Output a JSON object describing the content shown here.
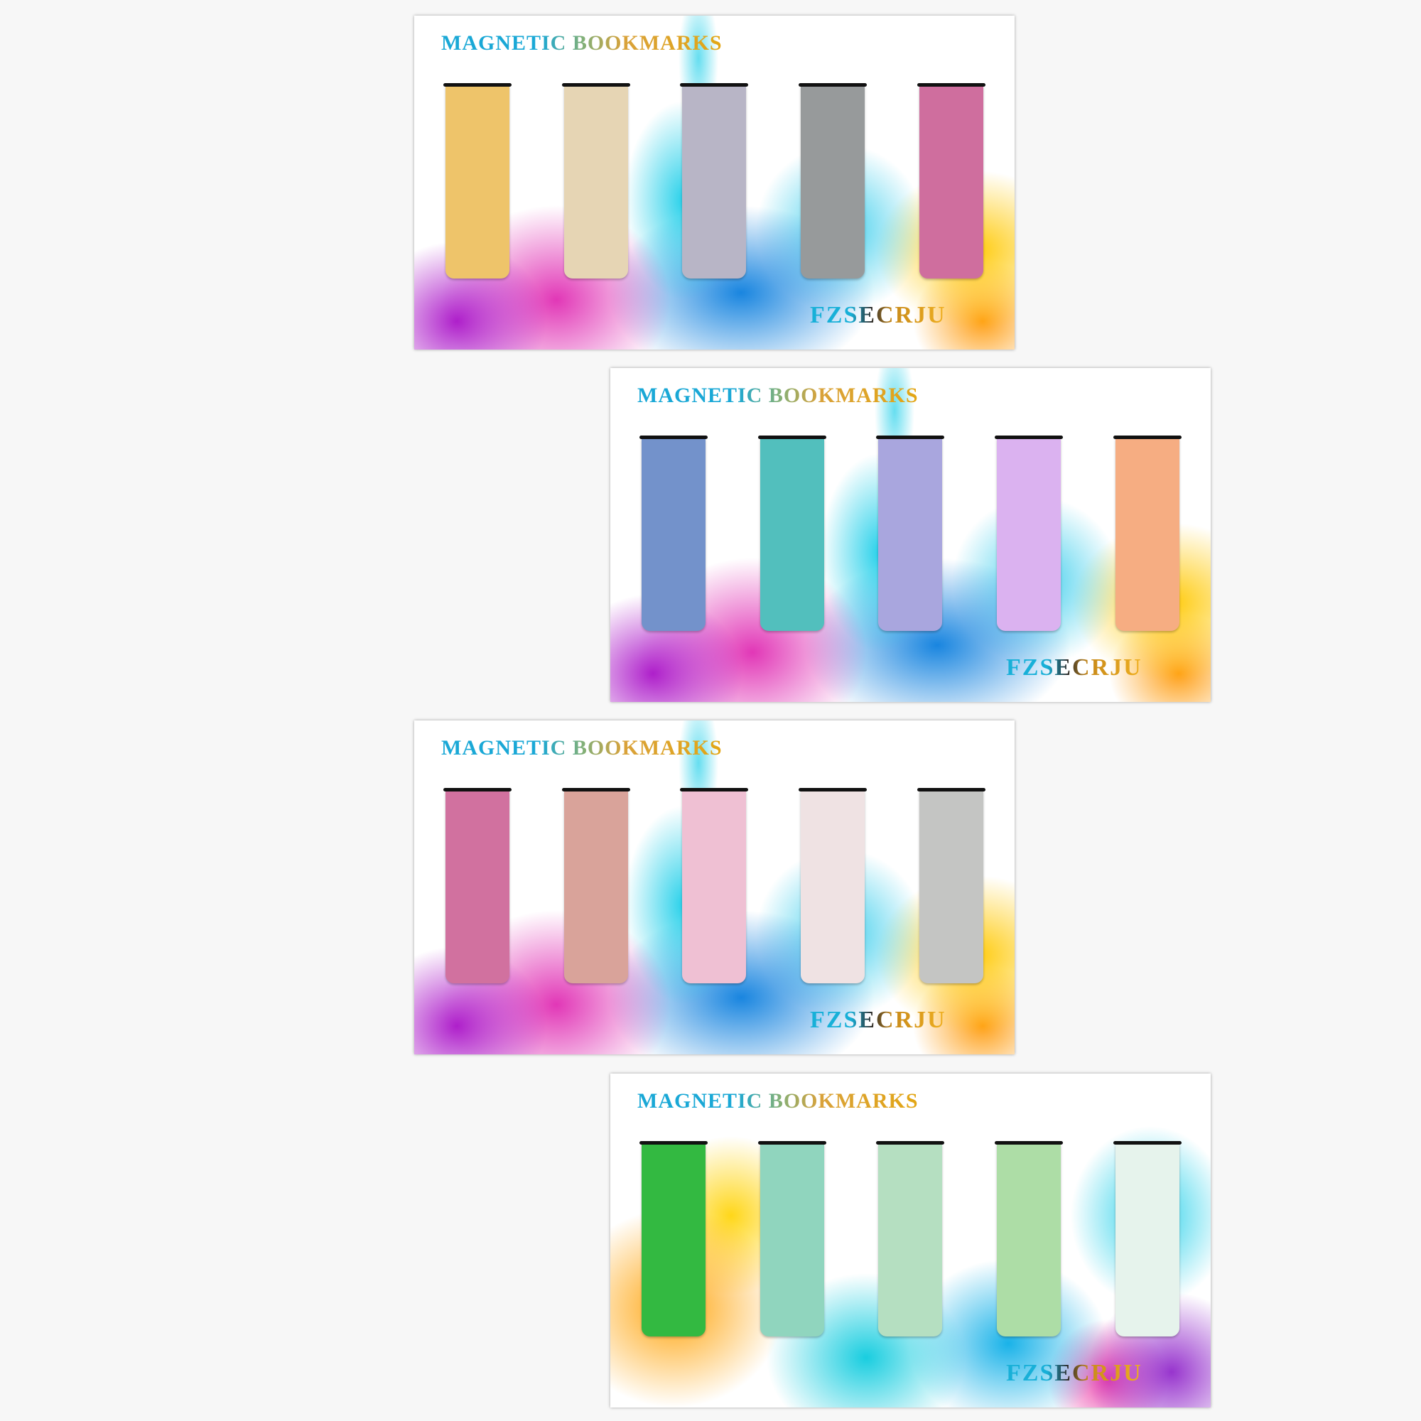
{
  "cards": [
    {
      "title": "MAGNETIC BOOKMARKS",
      "brand": "FZSECRJU",
      "bookmark_colors": [
        "#eec46a",
        "#e6d5b4",
        "#b8b5c6",
        "#979a9b",
        "#cf6e9e"
      ]
    },
    {
      "title": "MAGNETIC BOOKMARKS",
      "brand": "FZSECRJU",
      "bookmark_colors": [
        "#7392cb",
        "#52bfbd",
        "#a9a6de",
        "#dbb2f0",
        "#f6ad82"
      ]
    },
    {
      "title": "MAGNETIC BOOKMARKS",
      "brand": "FZSECRJU",
      "bookmark_colors": [
        "#d1719f",
        "#d9a39a",
        "#efc0d3",
        "#efe2e3",
        "#c4c5c3"
      ]
    },
    {
      "title": "MAGNETIC BOOKMARKS",
      "brand": "FZSECRJU",
      "bookmark_colors": [
        "#33b941",
        "#90d5be",
        "#b5dfc1",
        "#addda6",
        "#e6f3ec"
      ]
    }
  ]
}
